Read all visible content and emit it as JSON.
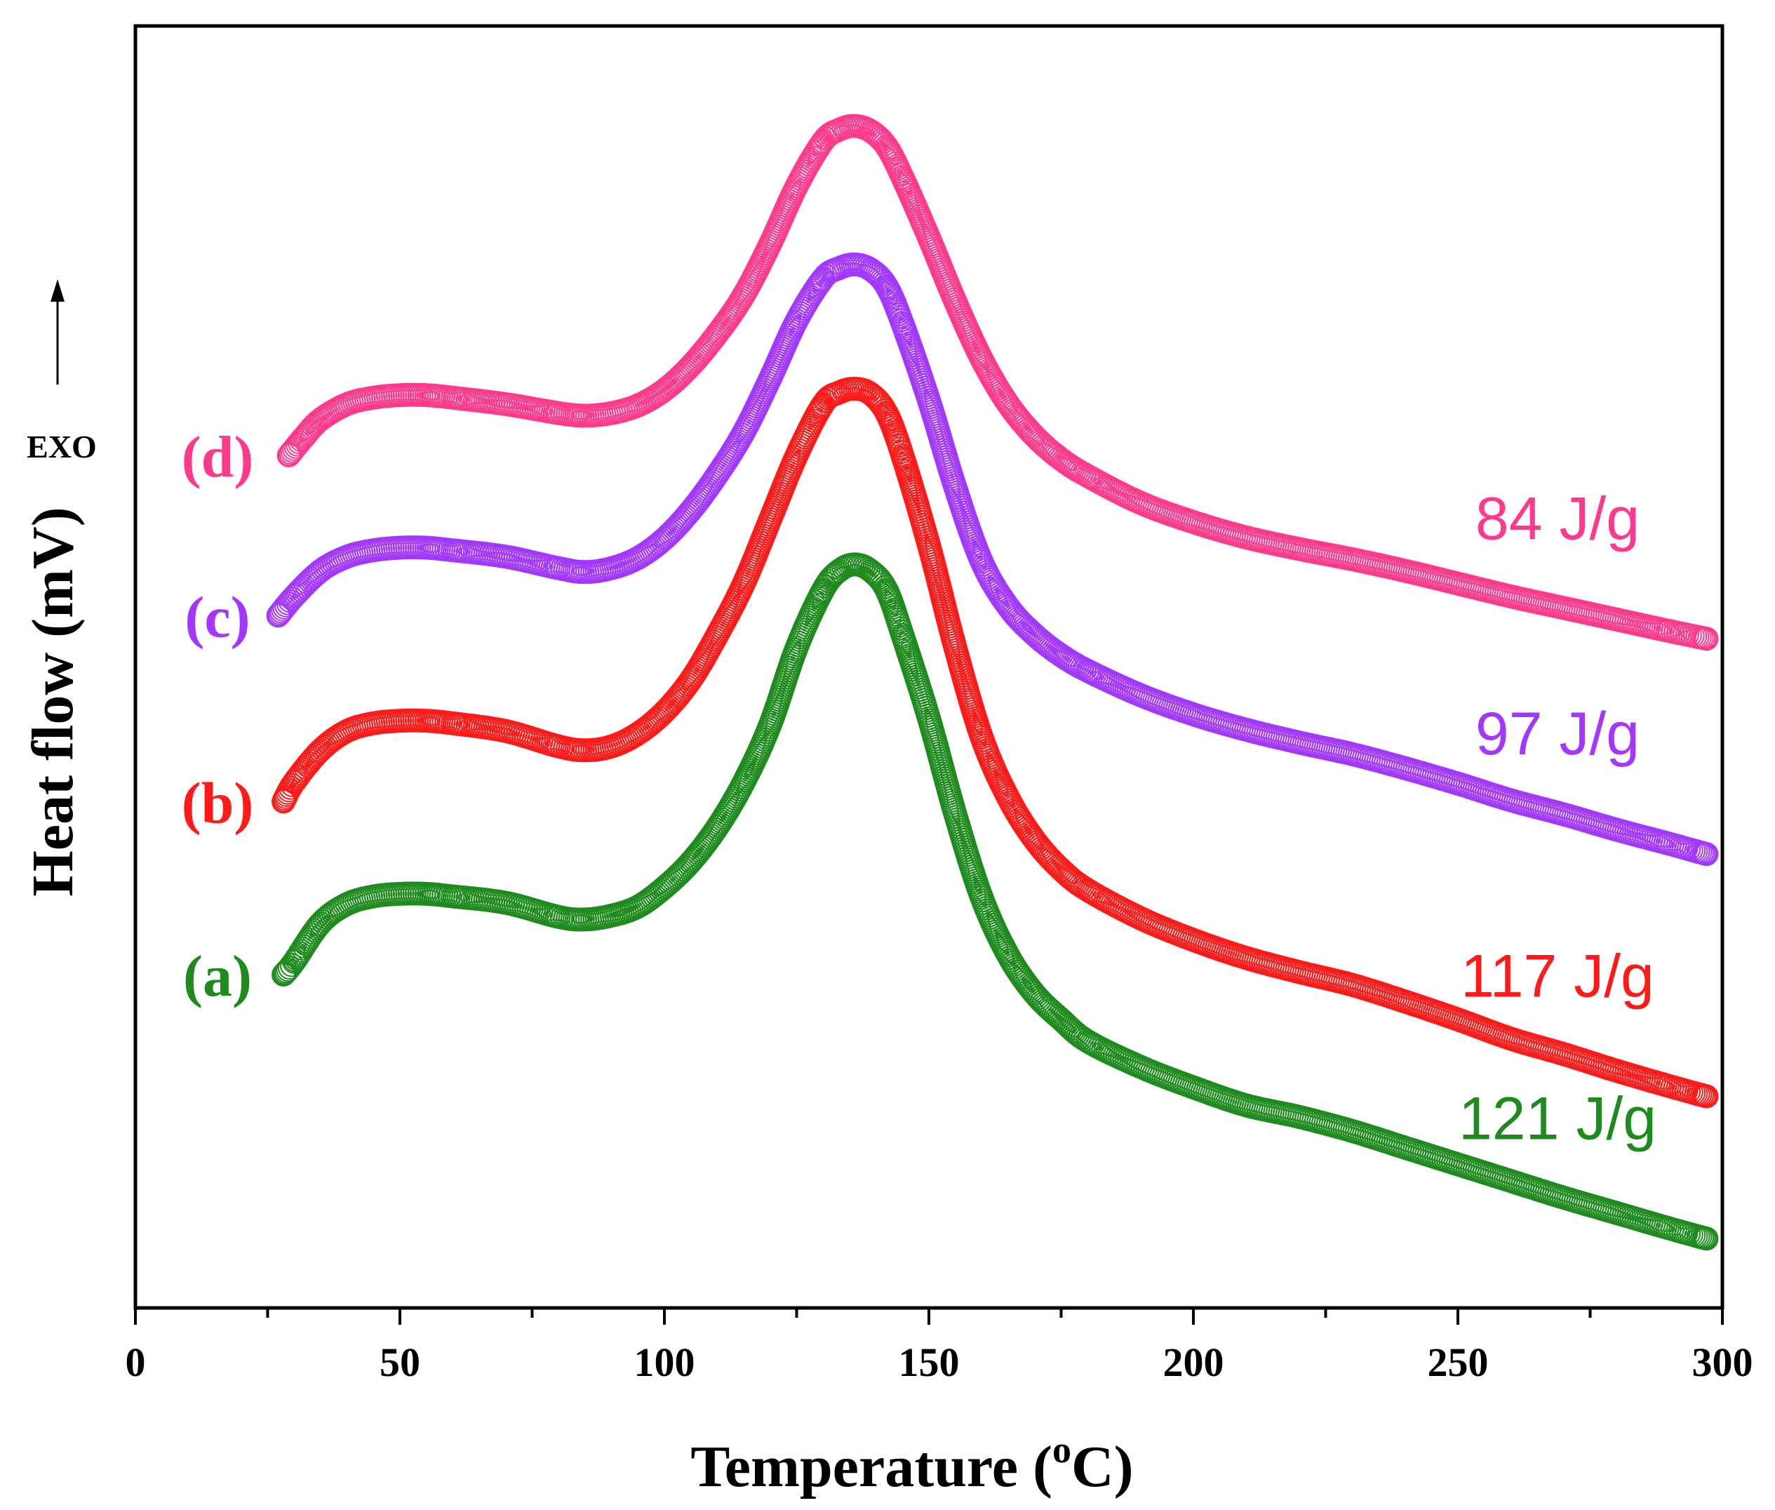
{
  "chart_data": {
    "type": "scatter",
    "title": "",
    "xlabel": "Temperature (",
    "xlabel_sup": "o",
    "xlabel_suffix": "C)",
    "ylabel": "Heat flow (mV)",
    "exo_label": "EXO",
    "xlim": [
      0,
      300
    ],
    "ylim": [
      0,
      100
    ],
    "x_ticks": [
      0,
      50,
      100,
      150,
      200,
      250,
      300
    ],
    "x_tick_labels": [
      "0",
      "50",
      "100",
      "150",
      "200",
      "250",
      "300"
    ],
    "y_ticks_shown": false,
    "grid": false,
    "series": [
      {
        "name": "(a)",
        "energy_label": "121 J/g",
        "color": "#1f8b1f",
        "x": [
          28,
          30,
          35,
          40,
          45,
          50,
          55,
          60,
          70,
          80,
          85,
          90,
          95,
          100,
          105,
          110,
          115,
          120,
          125,
          130,
          133,
          136,
          139,
          142,
          145,
          150,
          155,
          160,
          165,
          170,
          175,
          180,
          190,
          200,
          210,
          220,
          230,
          240,
          250,
          260,
          270,
          280,
          290,
          297
        ],
        "y": [
          26.0,
          27.0,
          30.0,
          31.5,
          32.1,
          32.3,
          32.3,
          32.1,
          31.6,
          30.5,
          30.3,
          30.6,
          31.3,
          32.8,
          34.8,
          37.5,
          41.0,
          45.5,
          51.5,
          56.0,
          57.5,
          58.0,
          57.5,
          56.0,
          52.5,
          46.0,
          38.5,
          32.0,
          27.5,
          24.5,
          22.5,
          20.8,
          18.8,
          17.2,
          15.8,
          14.9,
          13.8,
          12.5,
          11.2,
          9.9,
          8.6,
          7.4,
          6.2,
          5.4
        ]
      },
      {
        "name": "(b)",
        "energy_label": "117 J/g",
        "color": "#ff1a1a",
        "x": [
          28,
          30,
          35,
          40,
          45,
          50,
          55,
          60,
          70,
          80,
          85,
          90,
          95,
          100,
          105,
          110,
          115,
          120,
          125,
          130,
          133,
          136,
          139,
          142,
          145,
          150,
          155,
          160,
          165,
          170,
          175,
          180,
          190,
          200,
          210,
          220,
          230,
          240,
          250,
          260,
          270,
          280,
          290,
          297
        ],
        "y": [
          39.5,
          41.0,
          43.5,
          45.0,
          45.6,
          45.8,
          45.8,
          45.6,
          45.0,
          43.8,
          43.5,
          43.8,
          44.8,
          46.5,
          49.0,
          52.5,
          56.5,
          61.5,
          66.5,
          70.5,
          71.4,
          71.7,
          71.3,
          69.8,
          66.5,
          59.5,
          51.5,
          44.5,
          39.8,
          36.5,
          34.2,
          32.6,
          30.4,
          28.7,
          27.3,
          26.2,
          25.2,
          23.9,
          22.5,
          21.0,
          19.8,
          18.5,
          17.3,
          16.5
        ]
      },
      {
        "name": "(c)",
        "energy_label": "97 J/g",
        "color": "#a238ff",
        "x": [
          27,
          30,
          35,
          40,
          45,
          50,
          55,
          60,
          70,
          80,
          85,
          90,
          95,
          100,
          105,
          110,
          115,
          120,
          125,
          130,
          133,
          136,
          139,
          142,
          145,
          150,
          155,
          160,
          165,
          170,
          175,
          180,
          190,
          200,
          210,
          220,
          230,
          240,
          250,
          260,
          270,
          280,
          290,
          297
        ],
        "y": [
          54.0,
          55.5,
          57.5,
          58.6,
          59.1,
          59.3,
          59.3,
          59.1,
          58.6,
          57.7,
          57.4,
          57.7,
          58.5,
          60.0,
          62.2,
          65.0,
          68.3,
          72.5,
          77.0,
          80.3,
          81.1,
          81.4,
          81.0,
          79.7,
          76.8,
          70.8,
          64.0,
          58.2,
          54.7,
          52.5,
          50.9,
          49.7,
          47.8,
          46.3,
          45.1,
          44.1,
          43.2,
          42.1,
          40.9,
          39.6,
          38.5,
          37.3,
          36.2,
          35.4
        ]
      },
      {
        "name": "(d)",
        "energy_label": "84 J/g",
        "color": "#ff3a8c",
        "x": [
          29,
          32,
          35,
          40,
          45,
          50,
          55,
          60,
          70,
          80,
          85,
          90,
          95,
          100,
          105,
          110,
          115,
          120,
          125,
          130,
          133,
          136,
          139,
          142,
          145,
          150,
          155,
          160,
          165,
          170,
          175,
          180,
          190,
          200,
          210,
          220,
          230,
          240,
          250,
          260,
          270,
          280,
          290,
          297
        ],
        "y": [
          66.5,
          68.0,
          69.3,
          70.5,
          71.0,
          71.2,
          71.2,
          71.0,
          70.5,
          69.8,
          69.6,
          69.8,
          70.4,
          71.6,
          73.5,
          76.0,
          79.0,
          83.0,
          87.5,
          91.0,
          91.9,
          92.2,
          91.8,
          90.6,
          88.2,
          83.5,
          78.5,
          74.0,
          70.5,
          68.0,
          66.2,
          64.9,
          62.8,
          61.3,
          60.1,
          59.2,
          58.4,
          57.5,
          56.5,
          55.5,
          54.6,
          53.7,
          52.8,
          52.2
        ]
      }
    ]
  }
}
